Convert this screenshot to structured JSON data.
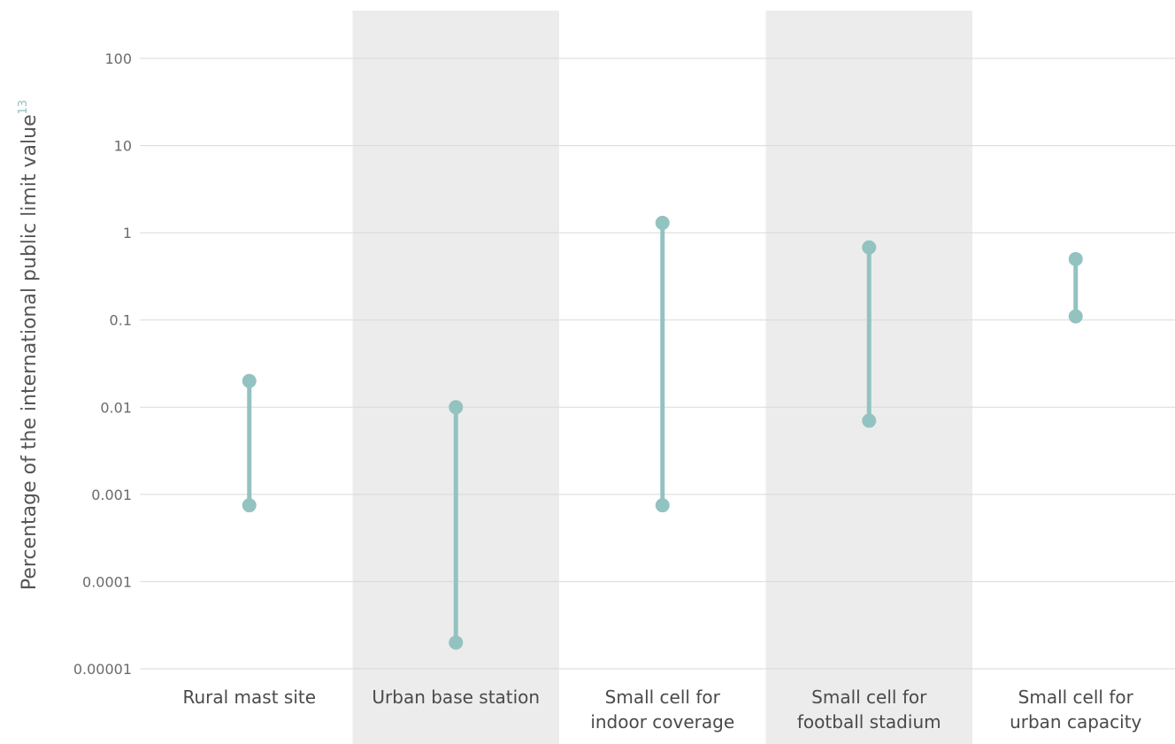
{
  "chart_data": {
    "type": "range",
    "scale": "log",
    "ylabel": "Percentage of the international public limit value",
    "ylabel_footnote": "13",
    "yticks": [
      "100",
      "10",
      "1",
      "0.1",
      "0.01",
      "0.001",
      "0.0001",
      "0.00001"
    ],
    "ylim": [
      1e-05,
      100
    ],
    "categories": [
      [
        "Rural mast site"
      ],
      [
        "Urban base station"
      ],
      [
        "Small cell for",
        "indoor coverage"
      ],
      [
        "Small cell for",
        "football stadium"
      ],
      [
        "Small cell for",
        "urban capacity"
      ]
    ],
    "ranges": [
      {
        "low": 0.00075,
        "high": 0.02
      },
      {
        "low": 2e-05,
        "high": 0.01
      },
      {
        "low": 0.00075,
        "high": 1.3
      },
      {
        "low": 0.007,
        "high": 0.68
      },
      {
        "low": 0.11,
        "high": 0.5
      }
    ],
    "shaded_categories": [
      1,
      3
    ],
    "grid": true,
    "colors": {
      "series": "#93c3c0",
      "band": "#ececec",
      "grid": "#d9d9d9"
    }
  }
}
